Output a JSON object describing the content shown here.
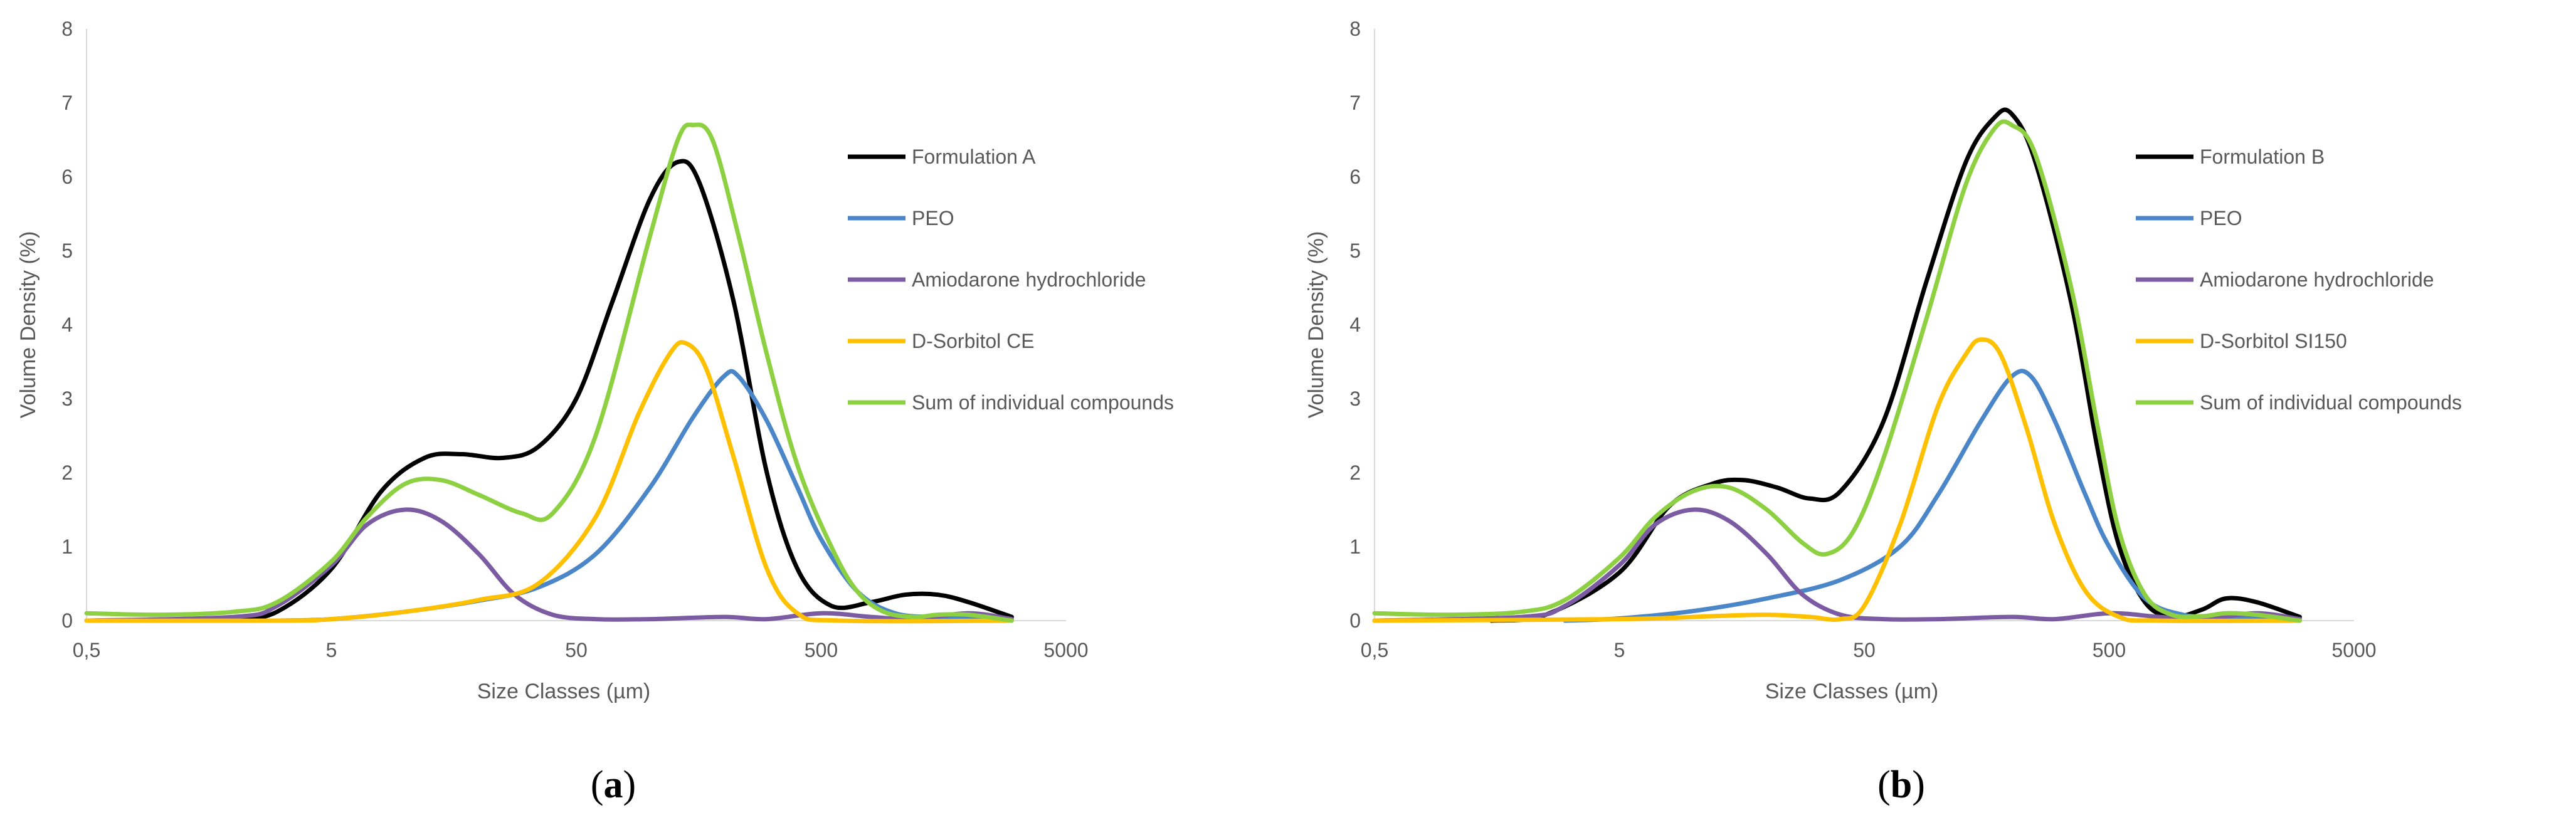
{
  "chart_data": [
    {
      "type": "line",
      "panel_label": "a",
      "xlabel": "Size Classes (µm)",
      "ylabel": "Volume Density (%)",
      "x_scale": "log",
      "xlim": [
        0.5,
        5000
      ],
      "ylim": [
        0,
        8
      ],
      "x_ticks": [
        0.5,
        5,
        50,
        500,
        5000
      ],
      "x_tick_labels": [
        "0,5",
        "5",
        "50",
        "500",
        "5000"
      ],
      "y_ticks": [
        0,
        1,
        2,
        3,
        4,
        5,
        6,
        7,
        8
      ],
      "y_tick_labels": [
        "0",
        "1",
        "2",
        "3",
        "4",
        "5",
        "6",
        "7",
        "8"
      ],
      "legend_position": "right",
      "series": [
        {
          "name": "Formulation A",
          "color": "#000000",
          "points": [
            [
              2,
              0
            ],
            [
              3,
              0.12
            ],
            [
              5,
              0.7
            ],
            [
              8,
              1.75
            ],
            [
              12,
              2.2
            ],
            [
              17,
              2.25
            ],
            [
              25,
              2.2
            ],
            [
              35,
              2.35
            ],
            [
              50,
              3.0
            ],
            [
              70,
              4.3
            ],
            [
              100,
              5.7
            ],
            [
              130,
              6.2
            ],
            [
              160,
              5.9
            ],
            [
              220,
              4.3
            ],
            [
              300,
              2.0
            ],
            [
              400,
              0.7
            ],
            [
              550,
              0.2
            ],
            [
              800,
              0.25
            ],
            [
              1100,
              0.35
            ],
            [
              1500,
              0.35
            ],
            [
              2000,
              0.25
            ],
            [
              3000,
              0.05
            ]
          ]
        },
        {
          "name": "PEO",
          "color": "#4a86c8",
          "points": [
            [
              3,
              0
            ],
            [
              5,
              0.02
            ],
            [
              10,
              0.12
            ],
            [
              20,
              0.27
            ],
            [
              35,
              0.45
            ],
            [
              60,
              0.9
            ],
            [
              100,
              1.8
            ],
            [
              150,
              2.75
            ],
            [
              200,
              3.3
            ],
            [
              230,
              3.3
            ],
            [
              300,
              2.7
            ],
            [
              400,
              1.8
            ],
            [
              500,
              1.1
            ],
            [
              700,
              0.4
            ],
            [
              1000,
              0.1
            ],
            [
              1500,
              0.05
            ],
            [
              2000,
              0.05
            ],
            [
              3000,
              0
            ]
          ]
        },
        {
          "name": "Amiodarone hydrochloride",
          "color": "#7b5ca3",
          "points": [
            [
              0.5,
              0
            ],
            [
              2,
              0.05
            ],
            [
              3,
              0.2
            ],
            [
              5,
              0.75
            ],
            [
              7,
              1.3
            ],
            [
              10,
              1.5
            ],
            [
              14,
              1.35
            ],
            [
              20,
              0.9
            ],
            [
              28,
              0.35
            ],
            [
              40,
              0.08
            ],
            [
              60,
              0.02
            ],
            [
              100,
              0.02
            ],
            [
              200,
              0.05
            ],
            [
              300,
              0.02
            ],
            [
              500,
              0.1
            ],
            [
              800,
              0.05
            ],
            [
              1200,
              0.02
            ],
            [
              2000,
              0.1
            ],
            [
              3000,
              0.02
            ]
          ]
        },
        {
          "name": "D-Sorbitol CE",
          "color": "#ffc000",
          "points": [
            [
              0.5,
              0
            ],
            [
              3,
              0
            ],
            [
              5,
              0.02
            ],
            [
              10,
              0.12
            ],
            [
              20,
              0.28
            ],
            [
              35,
              0.5
            ],
            [
              60,
              1.4
            ],
            [
              90,
              2.8
            ],
            [
              120,
              3.6
            ],
            [
              140,
              3.75
            ],
            [
              170,
              3.4
            ],
            [
              220,
              2.2
            ],
            [
              300,
              0.7
            ],
            [
              400,
              0.1
            ],
            [
              600,
              0
            ],
            [
              3000,
              0
            ]
          ]
        },
        {
          "name": "Sum of individual compounds",
          "color": "#8dd142",
          "points": [
            [
              0.5,
              0.1
            ],
            [
              1,
              0.08
            ],
            [
              2,
              0.12
            ],
            [
              3,
              0.25
            ],
            [
              5,
              0.8
            ],
            [
              7,
              1.4
            ],
            [
              10,
              1.85
            ],
            [
              14,
              1.9
            ],
            [
              20,
              1.7
            ],
            [
              30,
              1.45
            ],
            [
              40,
              1.45
            ],
            [
              60,
              2.5
            ],
            [
              100,
              5.2
            ],
            [
              130,
              6.5
            ],
            [
              150,
              6.7
            ],
            [
              180,
              6.5
            ],
            [
              230,
              5.2
            ],
            [
              300,
              3.6
            ],
            [
              400,
              2.1
            ],
            [
              550,
              1.0
            ],
            [
              700,
              0.4
            ],
            [
              900,
              0.12
            ],
            [
              1200,
              0.05
            ],
            [
              1500,
              0.08
            ],
            [
              2000,
              0.08
            ],
            [
              3000,
              0
            ]
          ]
        }
      ]
    },
    {
      "type": "line",
      "panel_label": "b",
      "xlabel": "Size Classes (µm)",
      "ylabel": "Volume Density (%)",
      "x_scale": "log",
      "xlim": [
        0.5,
        5000
      ],
      "ylim": [
        0,
        8
      ],
      "x_ticks": [
        0.5,
        5,
        50,
        500,
        5000
      ],
      "x_tick_labels": [
        "0,5",
        "5",
        "50",
        "500",
        "5000"
      ],
      "y_ticks": [
        0,
        1,
        2,
        3,
        4,
        5,
        6,
        7,
        8
      ],
      "y_tick_labels": [
        "0",
        "1",
        "2",
        "3",
        "4",
        "5",
        "6",
        "7",
        "8"
      ],
      "legend_position": "right",
      "series": [
        {
          "name": "Formulation B",
          "color": "#000000",
          "points": [
            [
              1.5,
              0
            ],
            [
              2.5,
              0.08
            ],
            [
              5,
              0.65
            ],
            [
              8,
              1.55
            ],
            [
              12,
              1.85
            ],
            [
              16,
              1.9
            ],
            [
              22,
              1.8
            ],
            [
              30,
              1.65
            ],
            [
              40,
              1.75
            ],
            [
              60,
              2.7
            ],
            [
              90,
              4.6
            ],
            [
              130,
              6.2
            ],
            [
              170,
              6.8
            ],
            [
              200,
              6.85
            ],
            [
              250,
              6.2
            ],
            [
              350,
              4.3
            ],
            [
              450,
              2.3
            ],
            [
              550,
              1.0
            ],
            [
              700,
              0.25
            ],
            [
              900,
              0.05
            ],
            [
              1200,
              0.15
            ],
            [
              1500,
              0.3
            ],
            [
              2000,
              0.25
            ],
            [
              3000,
              0.05
            ]
          ]
        },
        {
          "name": "PEO",
          "color": "#4a86c8",
          "points": [
            [
              3,
              0
            ],
            [
              5,
              0.03
            ],
            [
              10,
              0.13
            ],
            [
              20,
              0.3
            ],
            [
              40,
              0.55
            ],
            [
              70,
              1.0
            ],
            [
              100,
              1.7
            ],
            [
              150,
              2.7
            ],
            [
              200,
              3.3
            ],
            [
              240,
              3.3
            ],
            [
              300,
              2.7
            ],
            [
              400,
              1.7
            ],
            [
              500,
              1.0
            ],
            [
              700,
              0.3
            ],
            [
              1000,
              0.08
            ],
            [
              1500,
              0.05
            ],
            [
              2000,
              0.05
            ],
            [
              3000,
              0
            ]
          ]
        },
        {
          "name": "Amiodarone hydrochloride",
          "color": "#7b5ca3",
          "points": [
            [
              0.5,
              0
            ],
            [
              2,
              0.05
            ],
            [
              3,
              0.2
            ],
            [
              5,
              0.75
            ],
            [
              7,
              1.3
            ],
            [
              10,
              1.5
            ],
            [
              14,
              1.35
            ],
            [
              20,
              0.9
            ],
            [
              28,
              0.35
            ],
            [
              40,
              0.08
            ],
            [
              60,
              0.02
            ],
            [
              100,
              0.02
            ],
            [
              200,
              0.05
            ],
            [
              300,
              0.02
            ],
            [
              500,
              0.1
            ],
            [
              800,
              0.05
            ],
            [
              1200,
              0.02
            ],
            [
              2000,
              0.1
            ],
            [
              3000,
              0.02
            ]
          ]
        },
        {
          "name": "D-Sorbitol SI150",
          "color": "#ffc000",
          "points": [
            [
              0.5,
              0
            ],
            [
              5,
              0.02
            ],
            [
              12,
              0.06
            ],
            [
              20,
              0.08
            ],
            [
              30,
              0.05
            ],
            [
              40,
              0.02
            ],
            [
              50,
              0.2
            ],
            [
              70,
              1.3
            ],
            [
              100,
              2.9
            ],
            [
              130,
              3.6
            ],
            [
              150,
              3.8
            ],
            [
              180,
              3.6
            ],
            [
              230,
              2.6
            ],
            [
              300,
              1.3
            ],
            [
              400,
              0.4
            ],
            [
              550,
              0.05
            ],
            [
              800,
              0
            ],
            [
              3000,
              0
            ]
          ]
        },
        {
          "name": "Sum of individual compounds",
          "color": "#8dd142",
          "points": [
            [
              0.5,
              0.1
            ],
            [
              1,
              0.08
            ],
            [
              2,
              0.12
            ],
            [
              3,
              0.28
            ],
            [
              5,
              0.85
            ],
            [
              7,
              1.4
            ],
            [
              10,
              1.75
            ],
            [
              14,
              1.8
            ],
            [
              20,
              1.5
            ],
            [
              28,
              1.05
            ],
            [
              35,
              0.9
            ],
            [
              45,
              1.2
            ],
            [
              60,
              2.2
            ],
            [
              90,
              4.1
            ],
            [
              130,
              5.9
            ],
            [
              170,
              6.65
            ],
            [
              200,
              6.7
            ],
            [
              250,
              6.3
            ],
            [
              350,
              4.5
            ],
            [
              450,
              2.6
            ],
            [
              550,
              1.2
            ],
            [
              700,
              0.35
            ],
            [
              900,
              0.08
            ],
            [
              1200,
              0.06
            ],
            [
              1500,
              0.1
            ],
            [
              2000,
              0.08
            ],
            [
              3000,
              0
            ]
          ]
        }
      ]
    }
  ]
}
